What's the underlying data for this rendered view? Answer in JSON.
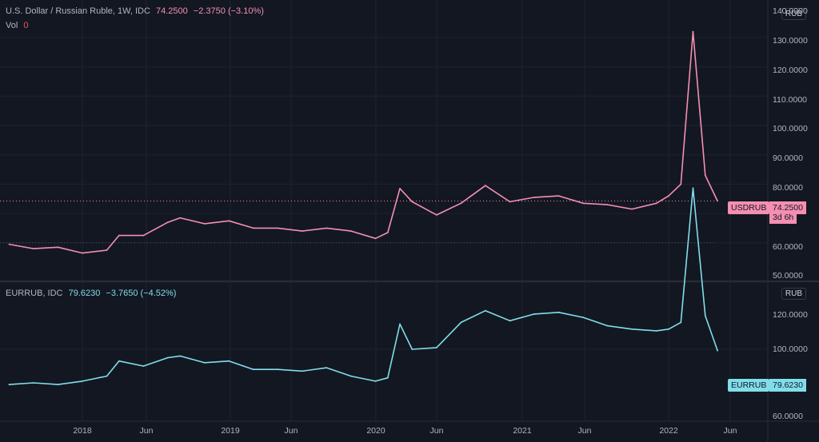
{
  "upper_pane": {
    "symbol": "U.S. Dollar / Russian Ruble, 1W, IDC",
    "last": "74.2500",
    "change": "−2.3750 (−3.10%)",
    "vol_label": "Vol",
    "vol_value": "0",
    "currency": "RUB",
    "tag_symbol": "USDRUB",
    "tag_value": "74.2500",
    "countdown": "3d 6h",
    "y_ticks": [
      "140.0000",
      "130.0000",
      "120.0000",
      "110.0000",
      "100.0000",
      "90.0000",
      "80.0000",
      "60.0000",
      "50.0000"
    ]
  },
  "lower_pane": {
    "symbol": "EURRUB, IDC",
    "last": "79.6230",
    "change": "−3.7650 (−4.52%)",
    "currency": "RUB",
    "tag_symbol": "EURRUB",
    "tag_value": "79.6230",
    "y_ticks": [
      "120.0000",
      "100.0000",
      "60.0000"
    ]
  },
  "x_axis": [
    "2018",
    "Jun",
    "2019",
    "Jun",
    "2020",
    "Jun",
    "2021",
    "Jun",
    "2022",
    "Jun"
  ],
  "colors": {
    "usd": "#f48fb1",
    "eur": "#80deea",
    "background": "#131722",
    "grid": "#1f2330"
  },
  "chart_data": [
    {
      "type": "line",
      "title": "U.S. Dollar / Russian Ruble, 1W, IDC",
      "series": [
        {
          "name": "USDRUB",
          "x": [
            "2017-07",
            "2017-09",
            "2017-11",
            "2018-01",
            "2018-03",
            "2018-04",
            "2018-06",
            "2018-08",
            "2018-09",
            "2018-11",
            "2019-01",
            "2019-03",
            "2019-05",
            "2019-07",
            "2019-09",
            "2019-11",
            "2020-01",
            "2020-02",
            "2020-03",
            "2020-04",
            "2020-06",
            "2020-08",
            "2020-10",
            "2020-12",
            "2021-02",
            "2021-04",
            "2021-06",
            "2021-08",
            "2021-10",
            "2021-12",
            "2022-01",
            "2022-02",
            "2022-03",
            "2022-04",
            "2022-05"
          ],
          "values": [
            59.5,
            58.0,
            58.5,
            56.5,
            57.5,
            62.5,
            62.5,
            67.0,
            68.5,
            66.5,
            67.5,
            65.0,
            65.0,
            64.0,
            65.0,
            64.0,
            61.5,
            63.5,
            78.5,
            74.0,
            69.5,
            73.5,
            79.5,
            74.0,
            75.5,
            76.0,
            73.5,
            73.0,
            71.5,
            73.5,
            76.0,
            80.0,
            132.0,
            83.0,
            74.25
          ]
        }
      ],
      "ylim": [
        50,
        140
      ]
    },
    {
      "type": "line",
      "title": "EURRUB, IDC",
      "series": [
        {
          "name": "EURRUB",
          "x": [
            "2017-07",
            "2017-09",
            "2017-11",
            "2018-01",
            "2018-03",
            "2018-04",
            "2018-06",
            "2018-08",
            "2018-09",
            "2018-11",
            "2019-01",
            "2019-03",
            "2019-05",
            "2019-07",
            "2019-09",
            "2019-11",
            "2020-01",
            "2020-02",
            "2020-03",
            "2020-04",
            "2020-06",
            "2020-08",
            "2020-10",
            "2020-12",
            "2021-02",
            "2021-04",
            "2021-06",
            "2021-08",
            "2021-10",
            "2021-12",
            "2022-01",
            "2022-02",
            "2022-03",
            "2022-04",
            "2022-05"
          ],
          "values": [
            69.5,
            70.0,
            69.5,
            70.5,
            72.0,
            76.5,
            75.0,
            77.5,
            78.0,
            76.0,
            76.5,
            74.0,
            74.0,
            73.5,
            74.5,
            72.0,
            70.5,
            71.5,
            87.5,
            80.0,
            80.5,
            88.0,
            91.5,
            88.5,
            90.5,
            91.0,
            89.5,
            87.0,
            86.0,
            85.5,
            86.0,
            88.0,
            128.0,
            90.0,
            79.623
          ]
        }
      ],
      "ylim": [
        60,
        130
      ]
    }
  ]
}
